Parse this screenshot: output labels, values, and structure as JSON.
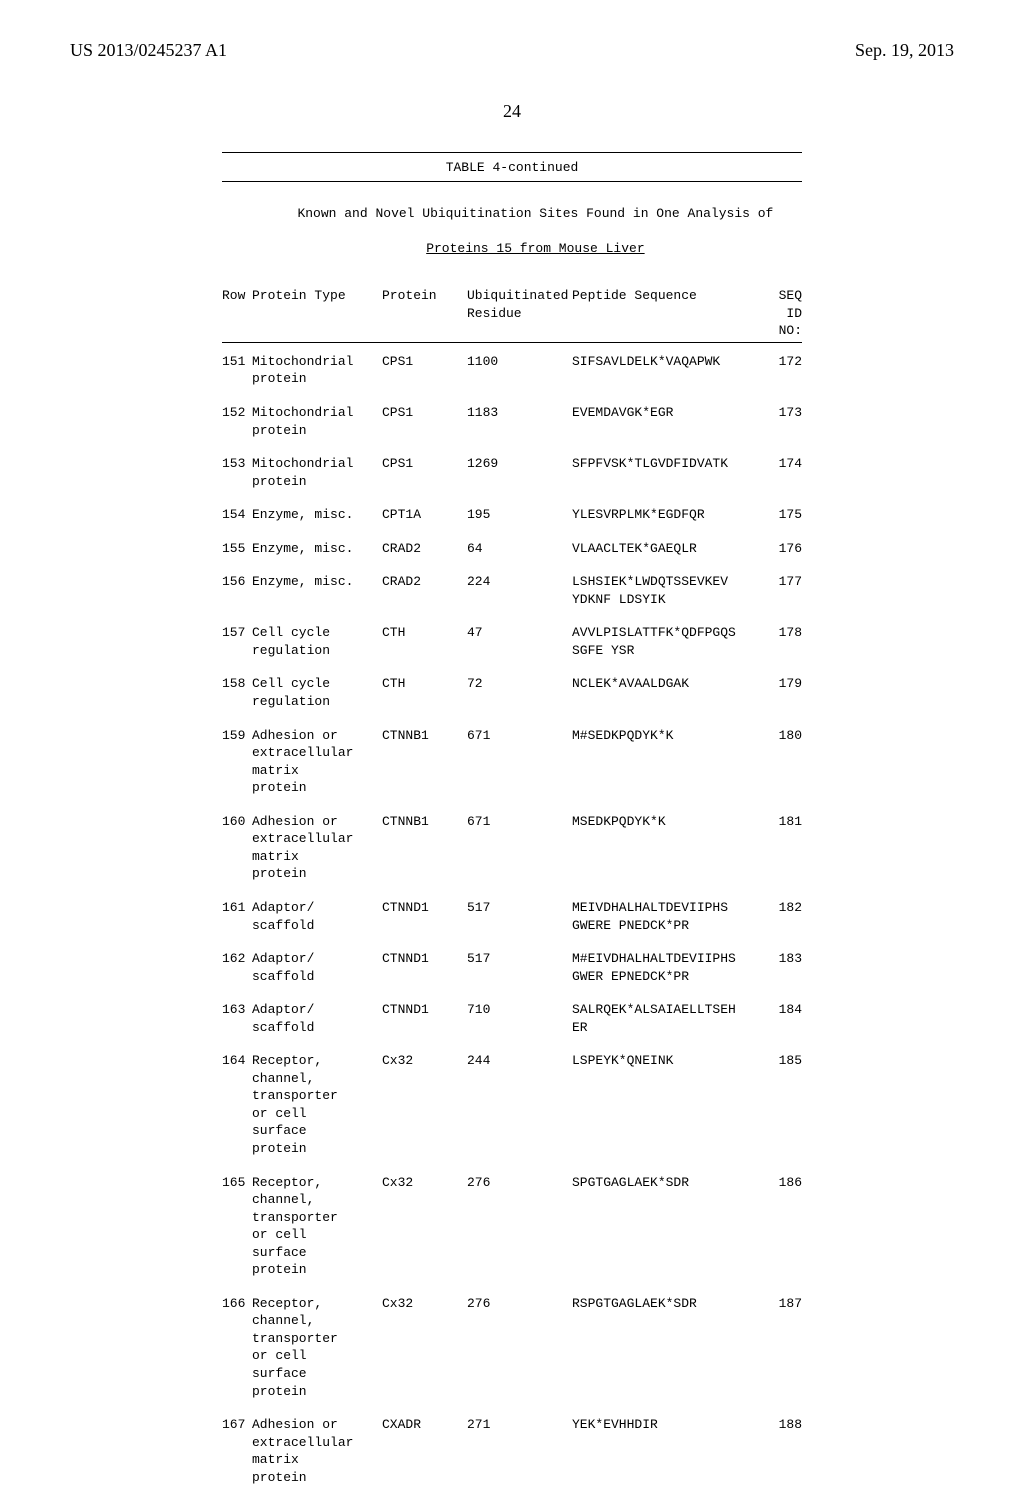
{
  "header": {
    "left": "US 2013/0245237 A1",
    "right": "Sep. 19, 2013"
  },
  "page_number": "24",
  "table": {
    "title": "TABLE 4-continued",
    "caption_line1": "Known and Novel Ubiquitination Sites Found in One Analysis of",
    "caption_line2": "Proteins 15 from Mouse Liver",
    "columns": {
      "row": "Row",
      "protein_type": "Protein Type",
      "protein": "Protein",
      "residue_line1": "Ubiquitinated",
      "residue_line2": "Residue",
      "peptide": "Peptide Sequence",
      "seqid_line1": "SEQ",
      "seqid_line2": "ID",
      "seqid_line3": "NO:"
    },
    "rows": [
      {
        "row": "151",
        "type": "Mitochondrial\nprotein",
        "protein": "CPS1",
        "residue": "1100",
        "seq": "SIFSAVLDELK*VAQAPWK",
        "seqid": "172"
      },
      {
        "row": "152",
        "type": "Mitochondrial\nprotein",
        "protein": "CPS1",
        "residue": "1183",
        "seq": "EVEMDAVGK*EGR",
        "seqid": "173"
      },
      {
        "row": "153",
        "type": "Mitochondrial\nprotein",
        "protein": "CPS1",
        "residue": "1269",
        "seq": "SFPFVSK*TLGVDFIDVATK",
        "seqid": "174"
      },
      {
        "row": "154",
        "type": "Enzyme, misc.",
        "protein": "CPT1A",
        "residue": "195",
        "seq": "YLESVRPLMK*EGDFQR",
        "seqid": "175"
      },
      {
        "row": "155",
        "type": "Enzyme, misc.",
        "protein": "CRAD2",
        "residue": "64",
        "seq": "VLAACLTEK*GAEQLR",
        "seqid": "176"
      },
      {
        "row": "156",
        "type": "Enzyme, misc.",
        "protein": "CRAD2",
        "residue": "224",
        "seq": "LSHSIEK*LWDQTSSEVKEV\nYDKNF LDSYIK",
        "seqid": "177"
      },
      {
        "row": "157",
        "type": "Cell cycle\nregulation",
        "protein": "CTH",
        "residue": "47",
        "seq": "AVVLPISLATTFK*QDFPGQS\nSGFE YSR",
        "seqid": "178"
      },
      {
        "row": "158",
        "type": "Cell cycle\nregulation",
        "protein": "CTH",
        "residue": "72",
        "seq": "NCLEK*AVAALDGAK",
        "seqid": "179"
      },
      {
        "row": "159",
        "type": "Adhesion or\nextracellular\nmatrix\nprotein",
        "protein": "CTNNB1",
        "residue": "671",
        "seq": "M#SEDKPQDYK*K",
        "seqid": "180"
      },
      {
        "row": "160",
        "type": "Adhesion or\nextracellular\nmatrix\nprotein",
        "protein": "CTNNB1",
        "residue": "671",
        "seq": "MSEDKPQDYK*K",
        "seqid": "181"
      },
      {
        "row": "161",
        "type": "Adaptor/\nscaffold",
        "protein": "CTNND1",
        "residue": "517",
        "seq": "MEIVDHALHALTDEVIIPHS\nGWERE PNEDCK*PR",
        "seqid": "182"
      },
      {
        "row": "162",
        "type": "Adaptor/\nscaffold",
        "protein": "CTNND1",
        "residue": "517",
        "seq": "M#EIVDHALHALTDEVIIPHS\nGWER EPNEDCK*PR",
        "seqid": "183"
      },
      {
        "row": "163",
        "type": "Adaptor/\nscaffold",
        "protein": "CTNND1",
        "residue": "710",
        "seq": "SALRQEK*ALSAIAELLTSEH\nER",
        "seqid": "184"
      },
      {
        "row": "164",
        "type": "Receptor,\nchannel,\ntransporter\nor cell\nsurface\nprotein",
        "protein": "Cx32",
        "residue": "244",
        "seq": "LSPEYK*QNEINK",
        "seqid": "185"
      },
      {
        "row": "165",
        "type": "Receptor,\nchannel,\ntransporter\nor cell\nsurface\nprotein",
        "protein": "Cx32",
        "residue": "276",
        "seq": "SPGTGAGLAEK*SDR",
        "seqid": "186"
      },
      {
        "row": "166",
        "type": "Receptor,\nchannel,\ntransporter\nor cell\nsurface\nprotein",
        "protein": "Cx32",
        "residue": "276",
        "seq": "RSPGTGAGLAEK*SDR",
        "seqid": "187"
      },
      {
        "row": "167",
        "type": "Adhesion or\nextracellular\nmatrix\nprotein",
        "protein": "CXADR",
        "residue": "271",
        "seq": "YEK*EVHHDIR",
        "seqid": "188"
      }
    ]
  }
}
